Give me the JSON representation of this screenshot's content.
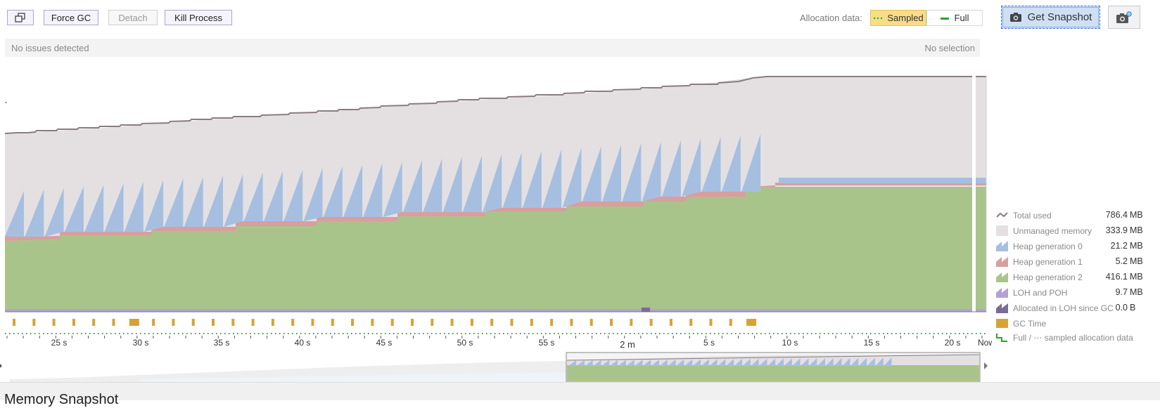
{
  "toolbar": {
    "restore_label": "⧉",
    "force_gc_label": "Force GC",
    "detach_label": "Detach",
    "kill_process_label": "Kill Process",
    "allocation_label": "Allocation data:",
    "sampled_label": "Sampled",
    "full_label": "Full",
    "get_snapshot_label": "Get Snapshot"
  },
  "status": {
    "left": "No issues detected",
    "right": "No selection"
  },
  "colors": {
    "unmanaged": "#e4e0e2",
    "total_line": "#8a7c80",
    "gen0": "#a6bfe0",
    "gen1": "#d99e9e",
    "gen2": "#a9c48a",
    "loh": "#b4a0d8",
    "loh_since_gc": "#7a6a98",
    "gc_time": "#d9a235",
    "sampled": "#22aa22"
  },
  "legend": [
    {
      "label": "Total used",
      "value": "786.4",
      "unit": "MB",
      "icon": "line-icon"
    },
    {
      "label": "Unmanaged memory",
      "value": "333.9",
      "unit": "MB",
      "icon": "unmanaged-icon"
    },
    {
      "label": "Heap generation 0",
      "value": "21.2",
      "unit": "MB",
      "icon": "gen0-icon"
    },
    {
      "label": "Heap generation 1",
      "value": "5.2",
      "unit": "MB",
      "icon": "gen1-icon"
    },
    {
      "label": "Heap generation 2",
      "value": "416.1",
      "unit": "MB",
      "icon": "gen2-icon"
    },
    {
      "label": "LOH and POH",
      "value": "9.7",
      "unit": "MB",
      "icon": "loh-icon"
    },
    {
      "label": "Allocated in LOH since GC",
      "value": "0.0",
      "unit": "B",
      "icon": "loh-since-gc-icon"
    },
    {
      "label": "GC Time",
      "value": "",
      "unit": "",
      "icon": "gc-time-icon"
    },
    {
      "label": "Full / ⋯ sampled allocation data",
      "value": "",
      "unit": "",
      "icon": "sampled-icon"
    }
  ],
  "timeline": {
    "ticks": [
      "25 s",
      "30 s",
      "35 s",
      "40 s",
      "45 s",
      "50 s",
      "55 s",
      "2 m",
      "5 s",
      "10 s",
      "15 s",
      "20 s",
      "Now"
    ]
  },
  "bottom_title": "Memory Snapshot"
}
